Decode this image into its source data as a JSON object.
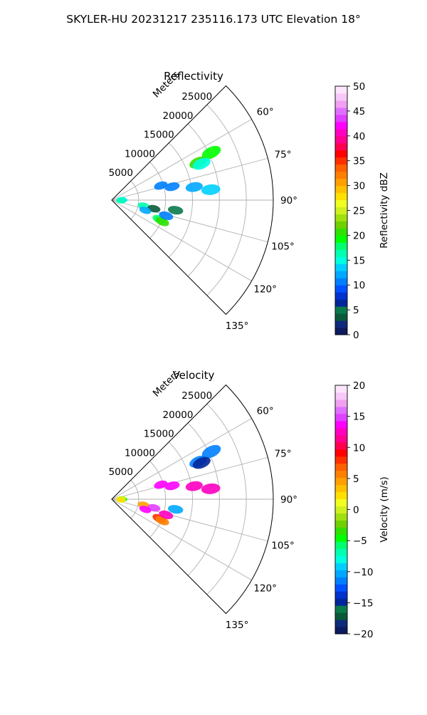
{
  "title": "SKYLER-HU  20231217  235116.173 UTC Elevation 18°",
  "chart_data": [
    {
      "type": "polar-sector",
      "title": "Reflectivity",
      "range_label": "Meters",
      "range_ticks": [
        5000,
        10000,
        15000,
        20000,
        25000
      ],
      "range_max": 30000,
      "azimuth_range_deg": [
        45,
        135
      ],
      "azimuth_ticks": [
        "60°",
        "75°",
        "90°",
        "105°",
        "120°",
        "135°"
      ],
      "azimuth_tick_values": [
        60,
        75,
        90,
        105,
        120,
        135
      ],
      "colorbar": {
        "label": "Reflectivity dBZ",
        "min": 0,
        "max": 50,
        "ticks": [
          "0",
          "5",
          "10",
          "15",
          "20",
          "25",
          "30",
          "35",
          "40",
          "45",
          "50"
        ],
        "tick_values": [
          0,
          5,
          10,
          15,
          20,
          25,
          30,
          35,
          40,
          45,
          50
        ],
        "colors": [
          "#0c1a5e",
          "#102a7a",
          "#0a5a3a",
          "#0a7a4a",
          "#00269a",
          "#0032d0",
          "#0050ff",
          "#0080ff",
          "#00a8ff",
          "#00d0ff",
          "#00ffe0",
          "#00ffb0",
          "#00ff70",
          "#00ff00",
          "#30e000",
          "#70d000",
          "#a0e010",
          "#d0f020",
          "#f0ff20",
          "#ffe000",
          "#ffc000",
          "#ffa000",
          "#ff8000",
          "#ff6000",
          "#ff3000",
          "#ff0000",
          "#ff0050",
          "#ff0090",
          "#ff00c0",
          "#ff00ff",
          "#e040ff",
          "#e070ff",
          "#f0a0f0",
          "#f8c8f8",
          "#fde4fd"
        ]
      },
      "echoes": [
        {
          "az": 64.5,
          "r": 20500,
          "value": 19
        },
        {
          "az": 66.5,
          "r": 17500,
          "value": 20
        },
        {
          "az": 68,
          "r": 18000,
          "value": 15
        },
        {
          "az": 73.5,
          "r": 9500,
          "value": 10
        },
        {
          "az": 77.5,
          "r": 11500,
          "value": 11
        },
        {
          "az": 81,
          "r": 15500,
          "value": 12
        },
        {
          "az": 84,
          "r": 18500,
          "value": 13
        },
        {
          "az": 90,
          "r": 2000,
          "value": 14
        },
        {
          "az": 86,
          "r": 1800,
          "value": 15
        },
        {
          "az": 95,
          "r": 1700,
          "value": 16
        },
        {
          "az": 100,
          "r": 6000,
          "value": 17
        },
        {
          "az": 101.5,
          "r": 8000,
          "value": 4
        },
        {
          "az": 99,
          "r": 12000,
          "value": 5
        },
        {
          "az": 107,
          "r": 6500,
          "value": 12
        },
        {
          "az": 112,
          "r": 9500,
          "value": 18
        },
        {
          "az": 113,
          "r": 10200,
          "value": 20
        },
        {
          "az": 106,
          "r": 10500,
          "value": 11
        }
      ]
    },
    {
      "type": "polar-sector",
      "title": "Velocity",
      "range_label": "Meters",
      "range_ticks": [
        5000,
        10000,
        15000,
        20000,
        25000
      ],
      "range_max": 30000,
      "azimuth_range_deg": [
        45,
        135
      ],
      "azimuth_ticks": [
        "60°",
        "75°",
        "90°",
        "105°",
        "120°",
        "135°"
      ],
      "azimuth_tick_values": [
        60,
        75,
        90,
        105,
        120,
        135
      ],
      "colorbar": {
        "label": "Velocity (m/s)",
        "min": -20,
        "max": 20,
        "ticks": [
          "−20",
          "−15",
          "−10",
          "−5",
          "0",
          "5",
          "10",
          "15",
          "20"
        ],
        "tick_values": [
          -20,
          -15,
          -10,
          -5,
          0,
          5,
          10,
          15,
          20
        ],
        "colors": [
          "#0c1a5e",
          "#102a7a",
          "#0a5a3a",
          "#0a7a4a",
          "#00269a",
          "#0032d0",
          "#0050ff",
          "#0080ff",
          "#00a8ff",
          "#00d0ff",
          "#00ffe0",
          "#00ffb0",
          "#00ff70",
          "#00ff00",
          "#30e000",
          "#70d000",
          "#a0e010",
          "#d0f020",
          "#f0ff20",
          "#ffe000",
          "#ffc000",
          "#ffa000",
          "#ff8000",
          "#ff6000",
          "#ff3000",
          "#ff0000",
          "#ff0050",
          "#ff0090",
          "#ff00c0",
          "#ff00ff",
          "#e040ff",
          "#e070ff",
          "#f0a0f0",
          "#f8c8f8",
          "#fde4fd"
        ]
      },
      "echoes": [
        {
          "az": 64.5,
          "r": 20500,
          "value": -12
        },
        {
          "az": 66.5,
          "r": 17500,
          "value": -12
        },
        {
          "az": 68,
          "r": 18000,
          "value": -15
        },
        {
          "az": 73.5,
          "r": 9500,
          "value": 14
        },
        {
          "az": 77.5,
          "r": 11500,
          "value": 14
        },
        {
          "az": 81,
          "r": 15500,
          "value": 13
        },
        {
          "az": 84,
          "r": 18500,
          "value": 12
        },
        {
          "az": 90,
          "r": 2000,
          "value": -5
        },
        {
          "az": 86,
          "r": 1800,
          "value": 0
        },
        {
          "az": 95,
          "r": 1700,
          "value": 2
        },
        {
          "az": 100,
          "r": 6000,
          "value": 5
        },
        {
          "az": 101.5,
          "r": 8000,
          "value": 15
        },
        {
          "az": 99,
          "r": 12000,
          "value": -10
        },
        {
          "az": 107,
          "r": 6500,
          "value": 14
        },
        {
          "az": 112,
          "r": 9500,
          "value": 8
        },
        {
          "az": 113,
          "r": 10200,
          "value": 6
        },
        {
          "az": 106,
          "r": 10500,
          "value": 13
        }
      ]
    }
  ]
}
